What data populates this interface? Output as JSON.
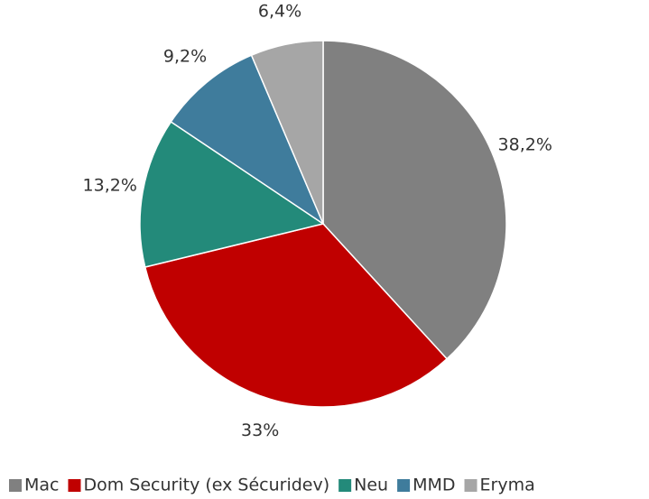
{
  "chart_data": {
    "type": "pie",
    "categories": [
      "Mac",
      "Dom Security (ex Sécuridev)",
      "Neu",
      "MMD",
      "Eryma"
    ],
    "values": [
      38.2,
      33,
      13.2,
      9.2,
      6.4
    ],
    "value_labels": [
      "38,2%",
      "33%",
      "13,2%",
      "9,2%",
      "6,4%"
    ],
    "colors": [
      "#808080",
      "#c00000",
      "#238a7a",
      "#3f7c9c",
      "#a6a6a6"
    ],
    "legend": "bottom"
  }
}
